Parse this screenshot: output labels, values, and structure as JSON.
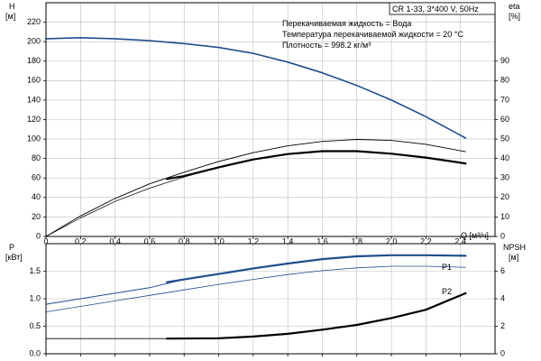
{
  "chart_data": [
    {
      "type": "line",
      "title": "CR 1-33, 3*400 V, 50Hz",
      "info_lines": [
        "Перекачиваемая жидкость = Вода",
        "Температура перекачиваемой жидкости = 20 °C",
        "Плотность = 998.2 кг/м³"
      ],
      "xlabel": "Q [м³/ч]",
      "xlim": [
        0,
        2.6
      ],
      "x_ticks": [
        "0",
        "0,2",
        "0,4",
        "0,6",
        "0,8",
        "1,0",
        "1,2",
        "1,4",
        "1,6",
        "1,8",
        "2,0",
        "2,2",
        "2,4"
      ],
      "left_axis": {
        "label_line1": "H",
        "label_line2": "[м]",
        "ylim": [
          0,
          240
        ],
        "ticks": [
          "0",
          "20",
          "40",
          "60",
          "80",
          "100",
          "120",
          "140",
          "160",
          "180",
          "200",
          "220"
        ]
      },
      "right_axis": {
        "label_line1": "eta",
        "label_line2": "[%]",
        "ylim": [
          0,
          120
        ],
        "ticks": [
          "0",
          "10",
          "20",
          "30",
          "40",
          "50",
          "60",
          "70",
          "80",
          "90"
        ]
      },
      "grid": true,
      "series": [
        {
          "role": "head",
          "axis": "left",
          "color": "#1f4e8c",
          "width": 1.6,
          "dash": "",
          "x": [
            0.0,
            0.2,
            0.4,
            0.6,
            0.8,
            1.0,
            1.2,
            1.4,
            1.6,
            1.8,
            2.0,
            2.2,
            2.43
          ],
          "y": [
            203,
            204,
            203,
            201,
            198,
            194,
            188,
            179,
            168,
            155,
            140,
            123,
            101
          ]
        },
        {
          "role": "eta-upper",
          "axis": "right",
          "color": "#000000",
          "width": 0.9,
          "dash": "",
          "x": [
            0.0,
            0.2,
            0.4,
            0.6,
            0.8,
            1.0,
            1.2,
            1.4,
            1.6,
            1.8,
            2.0,
            2.2,
            2.43
          ],
          "y": [
            0,
            10.5,
            19.5,
            27,
            33,
            38.5,
            43,
            46.5,
            48.8,
            49.8,
            49.3,
            47.3,
            43.5
          ]
        },
        {
          "role": "eta-lower",
          "axis": "right",
          "color": "#000000",
          "width": 0.7,
          "dash": "",
          "x": [
            0.0,
            0.2,
            0.4,
            0.6,
            0.8,
            1.0,
            1.2,
            1.4,
            1.6,
            1.8,
            2.0,
            2.2,
            2.43
          ],
          "y": [
            0,
            9.5,
            18,
            24.8,
            30.5,
            35.5,
            39.5,
            42.3,
            43.8,
            43.8,
            42.5,
            40.5,
            37.5
          ]
        },
        {
          "role": "eta-operating",
          "axis": "right",
          "color": "#000000",
          "width": 2.2,
          "dash": "",
          "x": [
            0.7,
            0.8,
            1.0,
            1.2,
            1.4,
            1.6,
            1.8,
            2.0,
            2.2,
            2.43
          ],
          "y": [
            29.5,
            31,
            35.5,
            39.5,
            42.3,
            43.8,
            43.8,
            42.5,
            40.5,
            37.5
          ]
        }
      ]
    },
    {
      "type": "line",
      "xlim": [
        0,
        2.6
      ],
      "left_axis": {
        "label_line1": "P",
        "label_line2": "[кВт]",
        "ylim": [
          0,
          2.0
        ],
        "ticks": [
          "0.0",
          "0.5",
          "1.0",
          "1.5"
        ]
      },
      "right_axis": {
        "label_line1": "NPSH",
        "label_line2": "[м]",
        "ylim": [
          0,
          8.0
        ],
        "ticks": [
          "0",
          "2",
          "4",
          "6"
        ]
      },
      "grid": true,
      "series": [
        {
          "name": "P1",
          "axis": "left",
          "color": "#1f4e8c",
          "width": 1.0,
          "dash": "",
          "x": [
            0.0,
            0.2,
            0.4,
            0.6,
            0.8,
            1.0,
            1.2,
            1.4,
            1.6,
            1.8,
            2.0,
            2.2,
            2.43
          ],
          "y": [
            0.9,
            1.0,
            1.1,
            1.2,
            1.35,
            1.45,
            1.55,
            1.64,
            1.72,
            1.77,
            1.79,
            1.79,
            1.78
          ]
        },
        {
          "name": "P1",
          "axis": "left",
          "color": "#1f4e8c",
          "width": 2.2,
          "dash": "",
          "x": [
            0.7,
            0.8,
            1.0,
            1.2,
            1.4,
            1.6,
            1.8,
            2.0,
            2.2,
            2.43
          ],
          "y": [
            1.3,
            1.35,
            1.45,
            1.55,
            1.64,
            1.72,
            1.77,
            1.79,
            1.79,
            1.78
          ]
        },
        {
          "name": "P2",
          "axis": "left",
          "color": "#1f4e8c",
          "width": 0.8,
          "dash": "",
          "x": [
            0.0,
            0.2,
            0.4,
            0.6,
            0.8,
            1.0,
            1.2,
            1.4,
            1.6,
            1.8,
            2.0,
            2.2,
            2.43
          ],
          "y": [
            0.76,
            0.86,
            0.96,
            1.06,
            1.16,
            1.26,
            1.35,
            1.44,
            1.51,
            1.56,
            1.59,
            1.59,
            1.57
          ]
        },
        {
          "role": "npsh-thin",
          "axis": "right",
          "color": "#000000",
          "width": 0.8,
          "dash": "",
          "x": [
            0.0,
            0.2,
            0.4,
            0.6,
            0.7
          ],
          "y": [
            1.1,
            1.1,
            1.1,
            1.1,
            1.1
          ]
        },
        {
          "role": "npsh-operating",
          "axis": "right",
          "color": "#000000",
          "width": 2.2,
          "dash": "",
          "x": [
            0.7,
            1.0,
            1.2,
            1.4,
            1.6,
            1.8,
            2.0,
            2.2,
            2.43
          ],
          "y": [
            1.1,
            1.13,
            1.25,
            1.45,
            1.75,
            2.1,
            2.6,
            3.2,
            4.4
          ]
        }
      ]
    }
  ]
}
